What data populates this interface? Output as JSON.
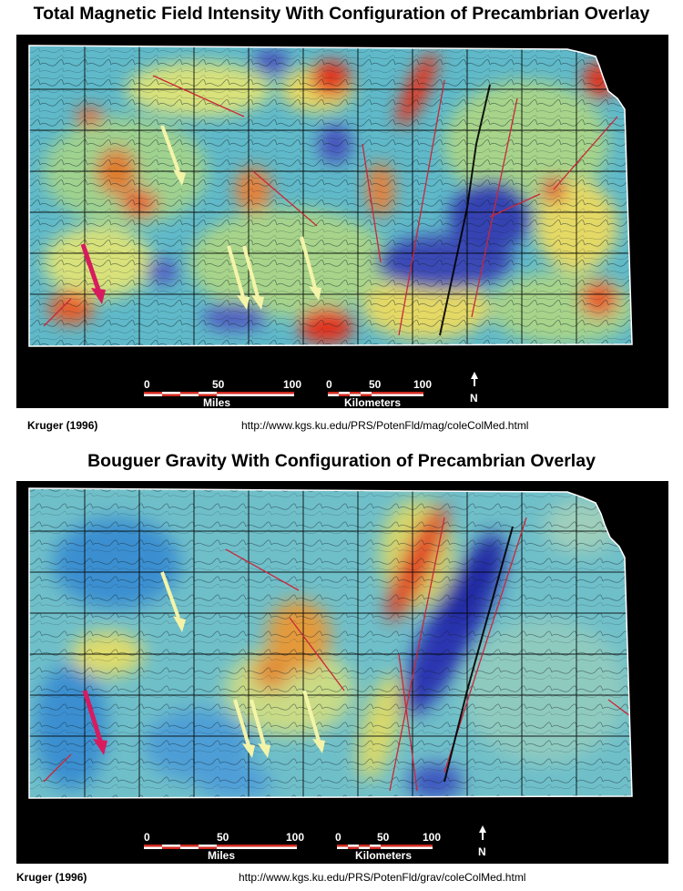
{
  "maps": [
    {
      "title": "Total Magnetic Field Intensity With Configuration of Precambrian Overlay",
      "source": "Kruger (1996)",
      "url": "http://www.kgs.ku.edu/PRS/PotenFld/mag/coleColMed.html",
      "scale": {
        "miles_ticks": [
          "0",
          "50",
          "100"
        ],
        "miles_label": "Miles",
        "km_ticks": [
          "0",
          "50",
          "100"
        ],
        "km_label": "Kilometers",
        "north": "N"
      }
    },
    {
      "title": "Bouguer Gravity With Configuration of Precambrian Overlay",
      "source": "Kruger (1996)",
      "url": "http://www.kgs.ku.edu/PRS/PotenFld/grav/coleColMed.html",
      "scale": {
        "miles_ticks": [
          "0",
          "50",
          "100"
        ],
        "miles_label": "Miles",
        "km_ticks": [
          "0",
          "50",
          "100"
        ],
        "km_label": "Kilometers",
        "north": "N"
      }
    }
  ],
  "colors": {
    "background": "#000000",
    "map_base": "#5fb9c9",
    "anomaly_high": "#e02a1c",
    "anomaly_low": "#3340b8",
    "arrow_yellow": "#f4f4a8",
    "arrow_red": "#d81b5f",
    "scale_bar": "#d12a20"
  }
}
